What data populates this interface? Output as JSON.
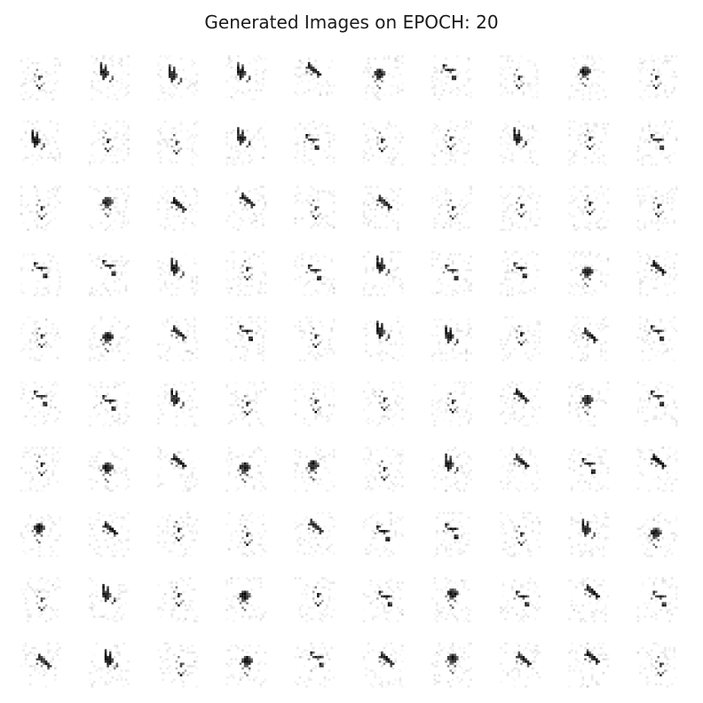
{
  "title": "Generated Images on EPOCH: 20",
  "grid": {
    "rows": 10,
    "cols": 10,
    "pattern_names": [
      "scatter-blob",
      "forked-stroke",
      "hook-dots",
      "diagonal-cluster",
      "sparse-dots"
    ],
    "cells": [
      [
        4,
        1,
        1,
        1,
        3,
        0,
        2,
        4,
        0,
        4
      ],
      [
        1,
        4,
        4,
        1,
        2,
        4,
        4,
        1,
        4,
        2
      ],
      [
        4,
        0,
        3,
        3,
        4,
        3,
        4,
        4,
        4,
        4
      ],
      [
        2,
        2,
        1,
        4,
        2,
        1,
        2,
        2,
        0,
        3
      ],
      [
        4,
        0,
        3,
        2,
        4,
        1,
        1,
        4,
        3,
        2
      ],
      [
        2,
        2,
        1,
        4,
        4,
        4,
        4,
        3,
        0,
        2
      ],
      [
        4,
        0,
        3,
        0,
        0,
        4,
        1,
        3,
        2,
        3
      ],
      [
        0,
        3,
        4,
        4,
        3,
        2,
        2,
        4,
        1,
        0
      ],
      [
        4,
        1,
        4,
        0,
        4,
        2,
        0,
        2,
        3,
        2
      ],
      [
        3,
        1,
        4,
        0,
        2,
        3,
        0,
        3,
        3,
        4
      ]
    ]
  },
  "colors": {
    "ink": "#000000",
    "background": "#ffffff",
    "title": "#1a1a1a"
  }
}
